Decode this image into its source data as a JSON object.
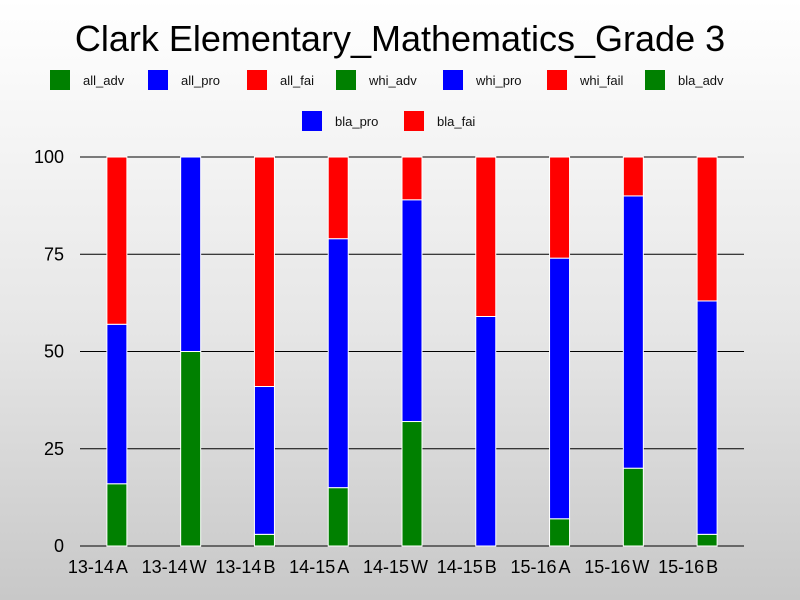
{
  "chart_data": {
    "type": "bar",
    "stacked": true,
    "title": "Clark Elementary_Mathematics_Grade 3",
    "categories": [
      "13-14 A",
      "13-14 W",
      "13-14 B",
      "14-15 A",
      "14-15 W",
      "14-15 B",
      "15-16 A",
      "15-16 W",
      "15-16 B"
    ],
    "ylim": [
      0,
      100
    ],
    "yticks": [
      0,
      25,
      50,
      75,
      100
    ],
    "grid": true,
    "legend": [
      {
        "name": "all_adv",
        "color": "#008000"
      },
      {
        "name": "all_pro",
        "color": "#0000ff"
      },
      {
        "name": "all_fai",
        "color": "#ff0000"
      },
      {
        "name": "whi_adv",
        "color": "#008000"
      },
      {
        "name": "whi_pro",
        "color": "#0000ff"
      },
      {
        "name": "whi_fail",
        "color": "#ff0000"
      },
      {
        "name": "bla_adv",
        "color": "#008000"
      },
      {
        "name": "bla_pro",
        "color": "#0000ff"
      },
      {
        "name": "bla_fai",
        "color": "#ff0000"
      }
    ],
    "series": [
      {
        "name": "adv",
        "color": "#008000",
        "values": [
          16,
          50,
          3,
          15,
          32,
          0,
          7,
          20,
          3
        ]
      },
      {
        "name": "pro",
        "color": "#0000ff",
        "values": [
          41,
          50,
          38,
          64,
          57,
          59,
          67,
          70,
          60
        ]
      },
      {
        "name": "fail",
        "color": "#ff0000",
        "values": [
          43,
          0,
          59,
          21,
          11,
          41,
          26,
          10,
          37
        ]
      }
    ]
  }
}
